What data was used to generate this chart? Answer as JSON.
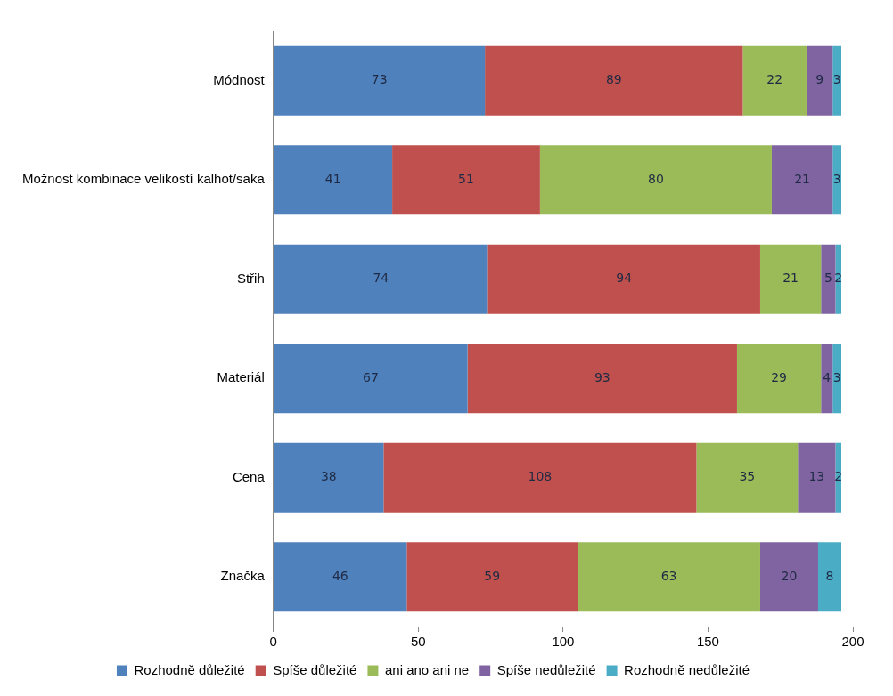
{
  "chart_data": {
    "type": "bar",
    "orientation": "horizontal",
    "stacked": true,
    "data_labels": true,
    "legend": "bottom",
    "categories": [
      "Módnost",
      "Možnost kombinace velikostí kalhot/saka",
      "Střih",
      "Materiál",
      "Cena",
      "Značka"
    ],
    "xlim": [
      0,
      200
    ],
    "xticks": [
      0,
      50,
      100,
      150,
      200
    ],
    "series": [
      {
        "name": "Rozhodně důležité",
        "color": "#4f81bd",
        "values": [
          73,
          41,
          74,
          67,
          38,
          46
        ]
      },
      {
        "name": "Spíše důležité",
        "color": "#c0504d",
        "values": [
          89,
          51,
          94,
          93,
          108,
          59
        ]
      },
      {
        "name": "ani ano ani ne",
        "color": "#9bbb59",
        "values": [
          22,
          80,
          21,
          29,
          35,
          63
        ]
      },
      {
        "name": "Spíše nedůležité",
        "color": "#8064a2",
        "values": [
          9,
          21,
          5,
          4,
          13,
          20
        ]
      },
      {
        "name": "Rozhodně nedůležité",
        "color": "#4bacc6",
        "values": [
          3,
          3,
          2,
          3,
          2,
          8
        ]
      }
    ]
  }
}
